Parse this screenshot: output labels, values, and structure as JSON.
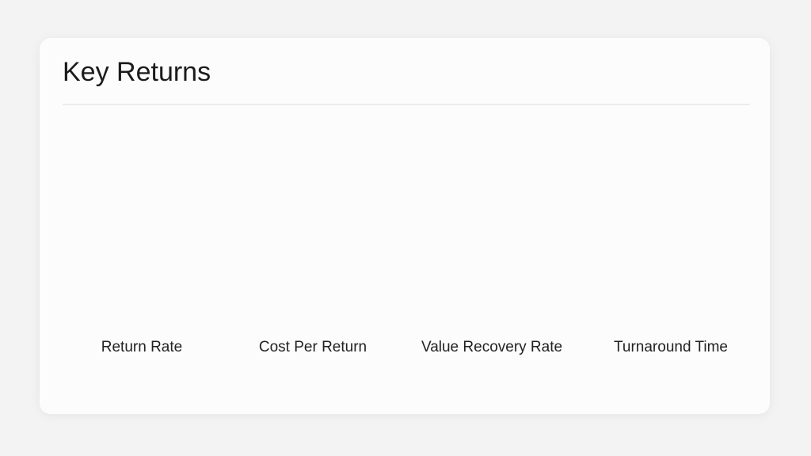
{
  "header": {
    "title": "Key Returns"
  },
  "items": [
    {
      "label": "Return Rate"
    },
    {
      "label": "Cost Per Return"
    },
    {
      "label": "Value Recovery Rate"
    },
    {
      "label": "Turnaround Time"
    }
  ]
}
